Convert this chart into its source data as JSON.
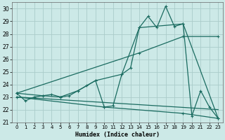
{
  "title": "",
  "xlabel": "Humidex (Indice chaleur)",
  "xlim": [
    -0.5,
    23.5
  ],
  "ylim": [
    21,
    30.5
  ],
  "xticks": [
    0,
    1,
    2,
    3,
    4,
    5,
    6,
    7,
    8,
    9,
    10,
    11,
    12,
    13,
    14,
    15,
    16,
    17,
    18,
    19,
    20,
    21,
    22,
    23
  ],
  "yticks": [
    21,
    22,
    23,
    24,
    25,
    26,
    27,
    28,
    29,
    30
  ],
  "bg_color": "#cce9e7",
  "grid_color": "#aaccca",
  "line_color": "#1a6b60",
  "line1_x": [
    0,
    1,
    2,
    3,
    4,
    5,
    6,
    7,
    8,
    9,
    10,
    11,
    12,
    13,
    14,
    15,
    16,
    17,
    18,
    19,
    20,
    21,
    22,
    23
  ],
  "line1_y": [
    23.3,
    22.7,
    23.0,
    23.1,
    23.2,
    23.0,
    23.1,
    23.5,
    23.9,
    24.3,
    22.2,
    22.3,
    24.8,
    25.3,
    28.5,
    29.4,
    28.5,
    30.2,
    28.6,
    28.8,
    21.5,
    23.5,
    22.2,
    21.3
  ],
  "line2_x": [
    0,
    3,
    5,
    7,
    9,
    12,
    14,
    19,
    23
  ],
  "line2_y": [
    23.3,
    23.1,
    23.0,
    23.5,
    24.3,
    24.8,
    28.5,
    28.8,
    21.3
  ],
  "line3_x": [
    0,
    23
  ],
  "line3_y": [
    23.0,
    22.0
  ],
  "line4_x": [
    0,
    14,
    19,
    23
  ],
  "line4_y": [
    23.3,
    26.5,
    27.8,
    27.8
  ],
  "line5_x": [
    0,
    10,
    19,
    23
  ],
  "line5_y": [
    23.0,
    22.2,
    21.7,
    21.3
  ]
}
